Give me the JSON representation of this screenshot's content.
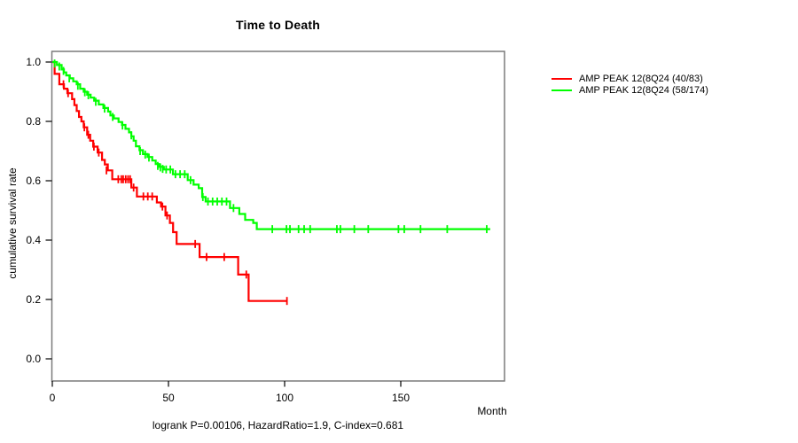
{
  "chart_data": {
    "type": "line",
    "subtype": "kaplan-meier-step",
    "title": "Time to Death",
    "xlabel": "Month",
    "ylabel": "cumulative survival rate",
    "footnote": "logrank P=0.00106, HazardRatio=1.9, C-index=0.681",
    "x_ticks": [
      0,
      50,
      100,
      150
    ],
    "y_ticks": [
      0.0,
      0.2,
      0.4,
      0.6,
      0.8,
      1.0
    ],
    "xlim": [
      0,
      195
    ],
    "ylim": [
      0.0,
      1.0
    ],
    "grid": false,
    "legend_position": "right",
    "series": [
      {
        "name": "AMP PEAK 12(8Q24 (40/83)",
        "color": "#ff0000",
        "steps": [
          [
            0,
            1.0
          ],
          [
            1,
            0.96
          ],
          [
            3,
            0.925
          ],
          [
            5,
            0.91
          ],
          [
            6.5,
            0.895
          ],
          [
            8.5,
            0.875
          ],
          [
            9.5,
            0.855
          ],
          [
            10.5,
            0.835
          ],
          [
            11.5,
            0.815
          ],
          [
            12.5,
            0.8
          ],
          [
            13.5,
            0.78
          ],
          [
            15,
            0.755
          ],
          [
            16.3,
            0.735
          ],
          [
            17.6,
            0.715
          ],
          [
            19.5,
            0.695
          ],
          [
            21.4,
            0.67
          ],
          [
            22.6,
            0.655
          ],
          [
            23.9,
            0.635
          ],
          [
            25.8,
            0.605
          ],
          [
            34,
            0.577
          ],
          [
            36.4,
            0.547
          ],
          [
            45,
            0.527
          ],
          [
            46.8,
            0.513
          ],
          [
            48.7,
            0.483
          ],
          [
            50.6,
            0.458
          ],
          [
            52,
            0.427
          ],
          [
            53.5,
            0.387
          ],
          [
            63.4,
            0.343
          ],
          [
            80,
            0.284
          ],
          [
            84.5,
            0.195
          ],
          [
            101,
            0.195
          ]
        ],
        "censors": [
          [
            4.8,
            0.925
          ],
          [
            6.8,
            0.895
          ],
          [
            13.8,
            0.78
          ],
          [
            15.5,
            0.755
          ],
          [
            17.9,
            0.715
          ],
          [
            20,
            0.695
          ],
          [
            23.3,
            0.635
          ],
          [
            28.4,
            0.605
          ],
          [
            29.7,
            0.605
          ],
          [
            30.5,
            0.605
          ],
          [
            31.6,
            0.605
          ],
          [
            32.6,
            0.605
          ],
          [
            33.5,
            0.605
          ],
          [
            35,
            0.577
          ],
          [
            39.2,
            0.547
          ],
          [
            41.1,
            0.547
          ],
          [
            43,
            0.547
          ],
          [
            47.4,
            0.513
          ],
          [
            49.4,
            0.483
          ],
          [
            61.5,
            0.387
          ],
          [
            66.4,
            0.343
          ],
          [
            74,
            0.343
          ],
          [
            83.5,
            0.284
          ],
          [
            101,
            0.195
          ]
        ]
      },
      {
        "name": "AMP PEAK 12(8Q24 (58/174)",
        "color": "#00ff00",
        "steps": [
          [
            0,
            1.0
          ],
          [
            2,
            0.99
          ],
          [
            4,
            0.975
          ],
          [
            5,
            0.965
          ],
          [
            6,
            0.955
          ],
          [
            7.5,
            0.945
          ],
          [
            9,
            0.935
          ],
          [
            10.5,
            0.925
          ],
          [
            12,
            0.91
          ],
          [
            13.5,
            0.9
          ],
          [
            15,
            0.89
          ],
          [
            16.5,
            0.88
          ],
          [
            18,
            0.87
          ],
          [
            20,
            0.857
          ],
          [
            22,
            0.845
          ],
          [
            24,
            0.833
          ],
          [
            25,
            0.82
          ],
          [
            26.5,
            0.81
          ],
          [
            28.5,
            0.798
          ],
          [
            30,
            0.788
          ],
          [
            31.5,
            0.775
          ],
          [
            33,
            0.763
          ],
          [
            34,
            0.75
          ],
          [
            35,
            0.735
          ],
          [
            36,
            0.716
          ],
          [
            37.5,
            0.703
          ],
          [
            39,
            0.69
          ],
          [
            41,
            0.68
          ],
          [
            43,
            0.668
          ],
          [
            44.5,
            0.656
          ],
          [
            46,
            0.647
          ],
          [
            48,
            0.638
          ],
          [
            51.9,
            0.622
          ],
          [
            58.3,
            0.602
          ],
          [
            60.8,
            0.587
          ],
          [
            63,
            0.575
          ],
          [
            64.5,
            0.545
          ],
          [
            66,
            0.53
          ],
          [
            76.5,
            0.508
          ],
          [
            80.5,
            0.488
          ],
          [
            83,
            0.468
          ],
          [
            86.5,
            0.458
          ],
          [
            88,
            0.437
          ],
          [
            188.5,
            0.437
          ]
        ],
        "censors": [
          [
            1,
            0.995
          ],
          [
            3,
            0.985
          ],
          [
            4.8,
            0.97
          ],
          [
            7.3,
            0.945
          ],
          [
            11,
            0.92
          ],
          [
            14,
            0.898
          ],
          [
            15.5,
            0.888
          ],
          [
            18.7,
            0.866
          ],
          [
            22.5,
            0.843
          ],
          [
            26,
            0.815
          ],
          [
            30.2,
            0.786
          ],
          [
            34,
            0.753
          ],
          [
            37.8,
            0.7
          ],
          [
            40,
            0.688
          ],
          [
            41.6,
            0.678
          ],
          [
            45.4,
            0.65
          ],
          [
            46.5,
            0.645
          ],
          [
            47.5,
            0.64
          ],
          [
            49,
            0.638
          ],
          [
            50.8,
            0.638
          ],
          [
            53,
            0.622
          ],
          [
            55,
            0.622
          ],
          [
            57,
            0.622
          ],
          [
            59.5,
            0.602
          ],
          [
            64.8,
            0.545
          ],
          [
            67,
            0.53
          ],
          [
            69,
            0.53
          ],
          [
            71,
            0.53
          ],
          [
            73,
            0.53
          ],
          [
            75,
            0.53
          ],
          [
            78,
            0.508
          ],
          [
            94.7,
            0.437
          ],
          [
            100.8,
            0.437
          ],
          [
            102.3,
            0.437
          ],
          [
            106,
            0.437
          ],
          [
            108.4,
            0.437
          ],
          [
            111,
            0.437
          ],
          [
            122.5,
            0.437
          ],
          [
            124,
            0.437
          ],
          [
            130,
            0.437
          ],
          [
            136,
            0.437
          ],
          [
            149,
            0.437
          ],
          [
            151.5,
            0.437
          ],
          [
            158.5,
            0.437
          ],
          [
            170,
            0.437
          ],
          [
            187,
            0.437
          ]
        ]
      }
    ],
    "colors": {
      "box_border": "#7a7a7a",
      "axis": "#000000",
      "background": "#ffffff"
    }
  }
}
